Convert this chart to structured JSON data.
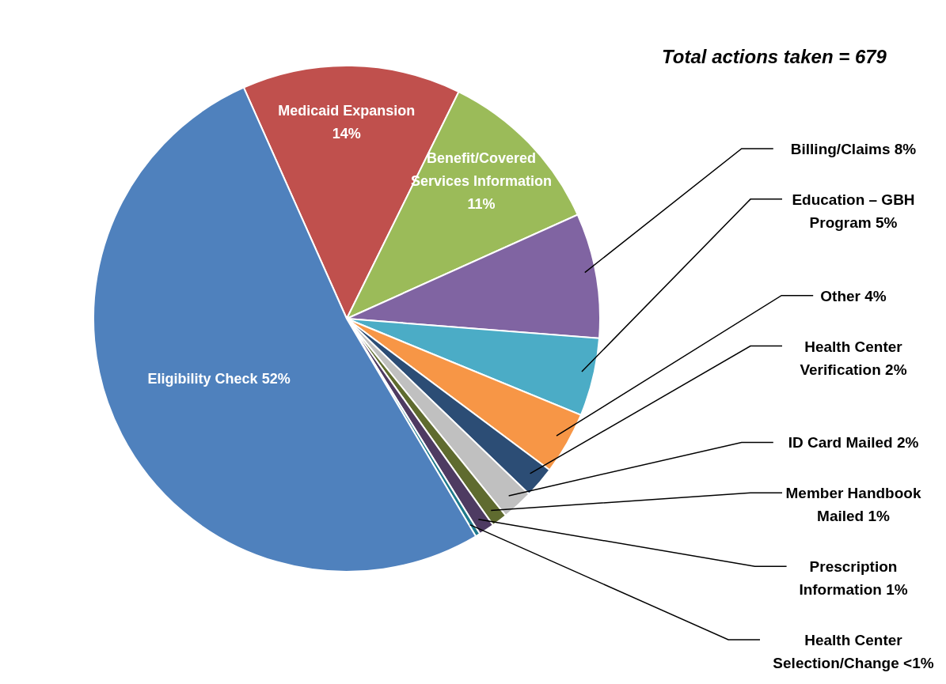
{
  "chart_data": {
    "type": "pie",
    "categories": [
      "Medicaid Expansion",
      "Benefit/Covered Services Information",
      "Billing/Claims",
      "Education – GBH Program",
      "Other",
      "Health Center Verification",
      "ID Card Mailed",
      "Member Handbook Mailed",
      "Prescription Information",
      "Health Center Selection/Change",
      "Eligibility Check"
    ],
    "values": [
      14,
      11,
      8,
      5,
      4,
      2,
      2,
      1,
      1,
      0.3,
      52
    ],
    "value_labels": [
      "14%",
      "11%",
      "8%",
      "5%",
      "4%",
      "2%",
      "2%",
      "1%",
      "1%",
      "<1%",
      "52%"
    ],
    "colors": [
      "#c0504d",
      "#9bbb59",
      "#8064a2",
      "#4bacc6",
      "#f79646",
      "#2c4d75",
      "#c0c0c0",
      "#5f6b2f",
      "#4e3b62",
      "#1f7a8c",
      "#4f81bd"
    ],
    "annotations": [
      "Total actions taken = 679"
    ]
  }
}
